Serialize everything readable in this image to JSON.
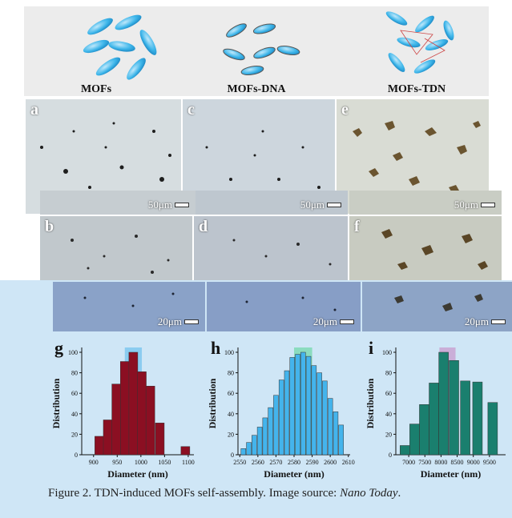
{
  "schematic": {
    "labels": [
      "MOFs",
      "MOFs-DNA",
      "MOFs-TDN"
    ]
  },
  "panels": [
    {
      "letter": "a",
      "scale": "50μm"
    },
    {
      "letter": "c",
      "scale": "50μm"
    },
    {
      "letter": "e",
      "scale": "50μm"
    },
    {
      "letter": "b",
      "scale": "20μm"
    },
    {
      "letter": "d",
      "scale": "20μm"
    },
    {
      "letter": "f",
      "scale": "20μm"
    }
  ],
  "colors": {
    "g_bar": "#8b0f22",
    "h_bar": "#44b4ec",
    "i_bar": "#1a7f6e",
    "g_highlight": "#7fc7ef",
    "h_highlight": "#7fd9b5",
    "i_highlight": "#c9a3d2"
  },
  "chart_data": [
    {
      "type": "bar",
      "panel": "g",
      "xlabel": "Diameter (nm)",
      "ylabel": "Distribution",
      "xlim": [
        875,
        1112
      ],
      "ylim": [
        0,
        100
      ],
      "xticks": [
        "900",
        "950",
        "1000",
        "1050",
        "1100"
      ],
      "yticks": [
        "0",
        "20",
        "40",
        "60",
        "80",
        "100"
      ],
      "x": [
        912,
        930,
        948,
        966,
        984,
        1002,
        1020,
        1040,
        1094
      ],
      "values": [
        18,
        34,
        69,
        91,
        100,
        81,
        67,
        31,
        8
      ],
      "highlight": [
        966,
        1002
      ]
    },
    {
      "type": "bar",
      "panel": "h",
      "xlabel": "Diameter (nm)",
      "ylabel": "Distribution",
      "xlim": [
        2549,
        2611
      ],
      "ylim": [
        0,
        100
      ],
      "xticks": [
        "2550",
        "2560",
        "2570",
        "2580",
        "2590",
        "2600",
        "2610"
      ],
      "yticks": [
        "0",
        "20",
        "40",
        "60",
        "80",
        "100"
      ],
      "x": [
        2552,
        2555,
        2558,
        2561,
        2564,
        2567,
        2570,
        2573,
        2576,
        2579,
        2582,
        2585,
        2588,
        2591,
        2594,
        2597,
        2600,
        2603,
        2606
      ],
      "values": [
        6,
        12,
        19,
        27,
        36,
        46,
        58,
        73,
        82,
        95,
        98,
        100,
        96,
        87,
        80,
        72,
        55,
        42,
        29
      ],
      "highlight": [
        2580,
        2590
      ]
    },
    {
      "type": "bar",
      "panel": "i",
      "xlabel": "Diameter (nm)",
      "ylabel": "Distribution",
      "xlim": [
        6600,
        10000
      ],
      "ylim": [
        0,
        100
      ],
      "xticks": [
        "7000",
        "7500",
        "8000",
        "8500",
        "9000",
        "9500"
      ],
      "yticks": [
        "0",
        "20",
        "40",
        "60",
        "80",
        "100"
      ],
      "x": [
        6880,
        7180,
        7480,
        7780,
        8080,
        8400,
        8750,
        9130,
        9600
      ],
      "values": [
        9,
        30,
        49,
        70,
        100,
        92,
        72,
        71,
        51
      ],
      "highlight": [
        7950,
        8450
      ]
    }
  ],
  "caption": {
    "text": "Figure 2. TDN-induced MOFs self-assembly. Image source: ",
    "source": "Nano Today",
    "end": "."
  }
}
